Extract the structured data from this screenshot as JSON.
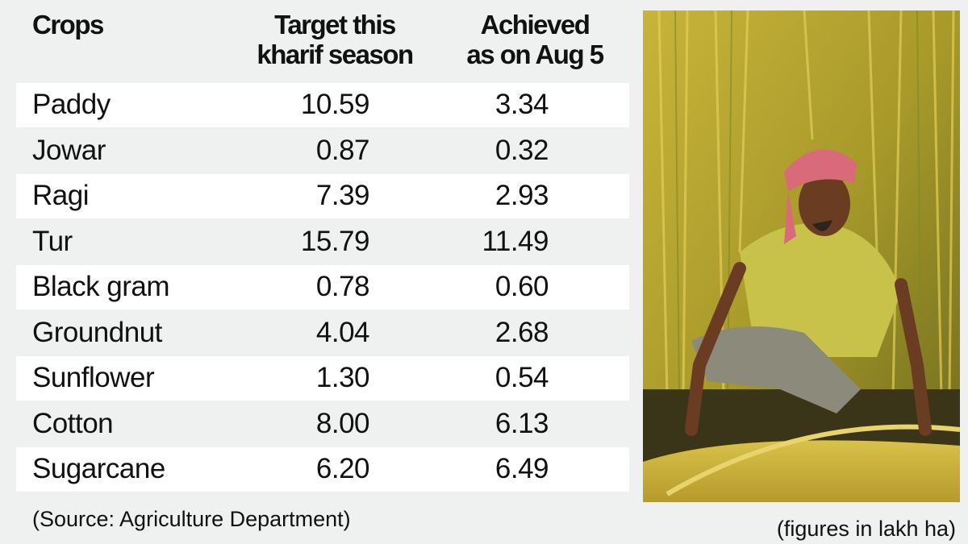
{
  "chart_data": {
    "type": "table",
    "columns": [
      "Crops",
      "Target this kharif season",
      "Achieved as on Aug 5"
    ],
    "rows": [
      [
        "Paddy",
        "10.59",
        "3.34"
      ],
      [
        "Jowar",
        "0.87",
        "0.32"
      ],
      [
        "Ragi",
        "7.39",
        "2.93"
      ],
      [
        "Tur",
        "15.79",
        "11.49"
      ],
      [
        "Black gram",
        "0.78",
        "0.60"
      ],
      [
        "Groundnut",
        "4.04",
        "2.68"
      ],
      [
        "Sunflower",
        "1.30",
        "0.54"
      ],
      [
        "Cotton",
        "8.00",
        "6.13"
      ],
      [
        "Sugarcane",
        "6.20",
        "6.49"
      ]
    ],
    "header_lines": {
      "col0": [
        "Crops"
      ],
      "col1": [
        "Target this",
        "kharif season"
      ],
      "col2": [
        "Achieved",
        "as on Aug 5"
      ]
    },
    "source": "(Source: Agriculture Department)",
    "units_note": "(figures in lakh ha)"
  },
  "colors": {
    "background": "#eef1f0",
    "row_alt": "#ffffff",
    "text": "#111111"
  }
}
